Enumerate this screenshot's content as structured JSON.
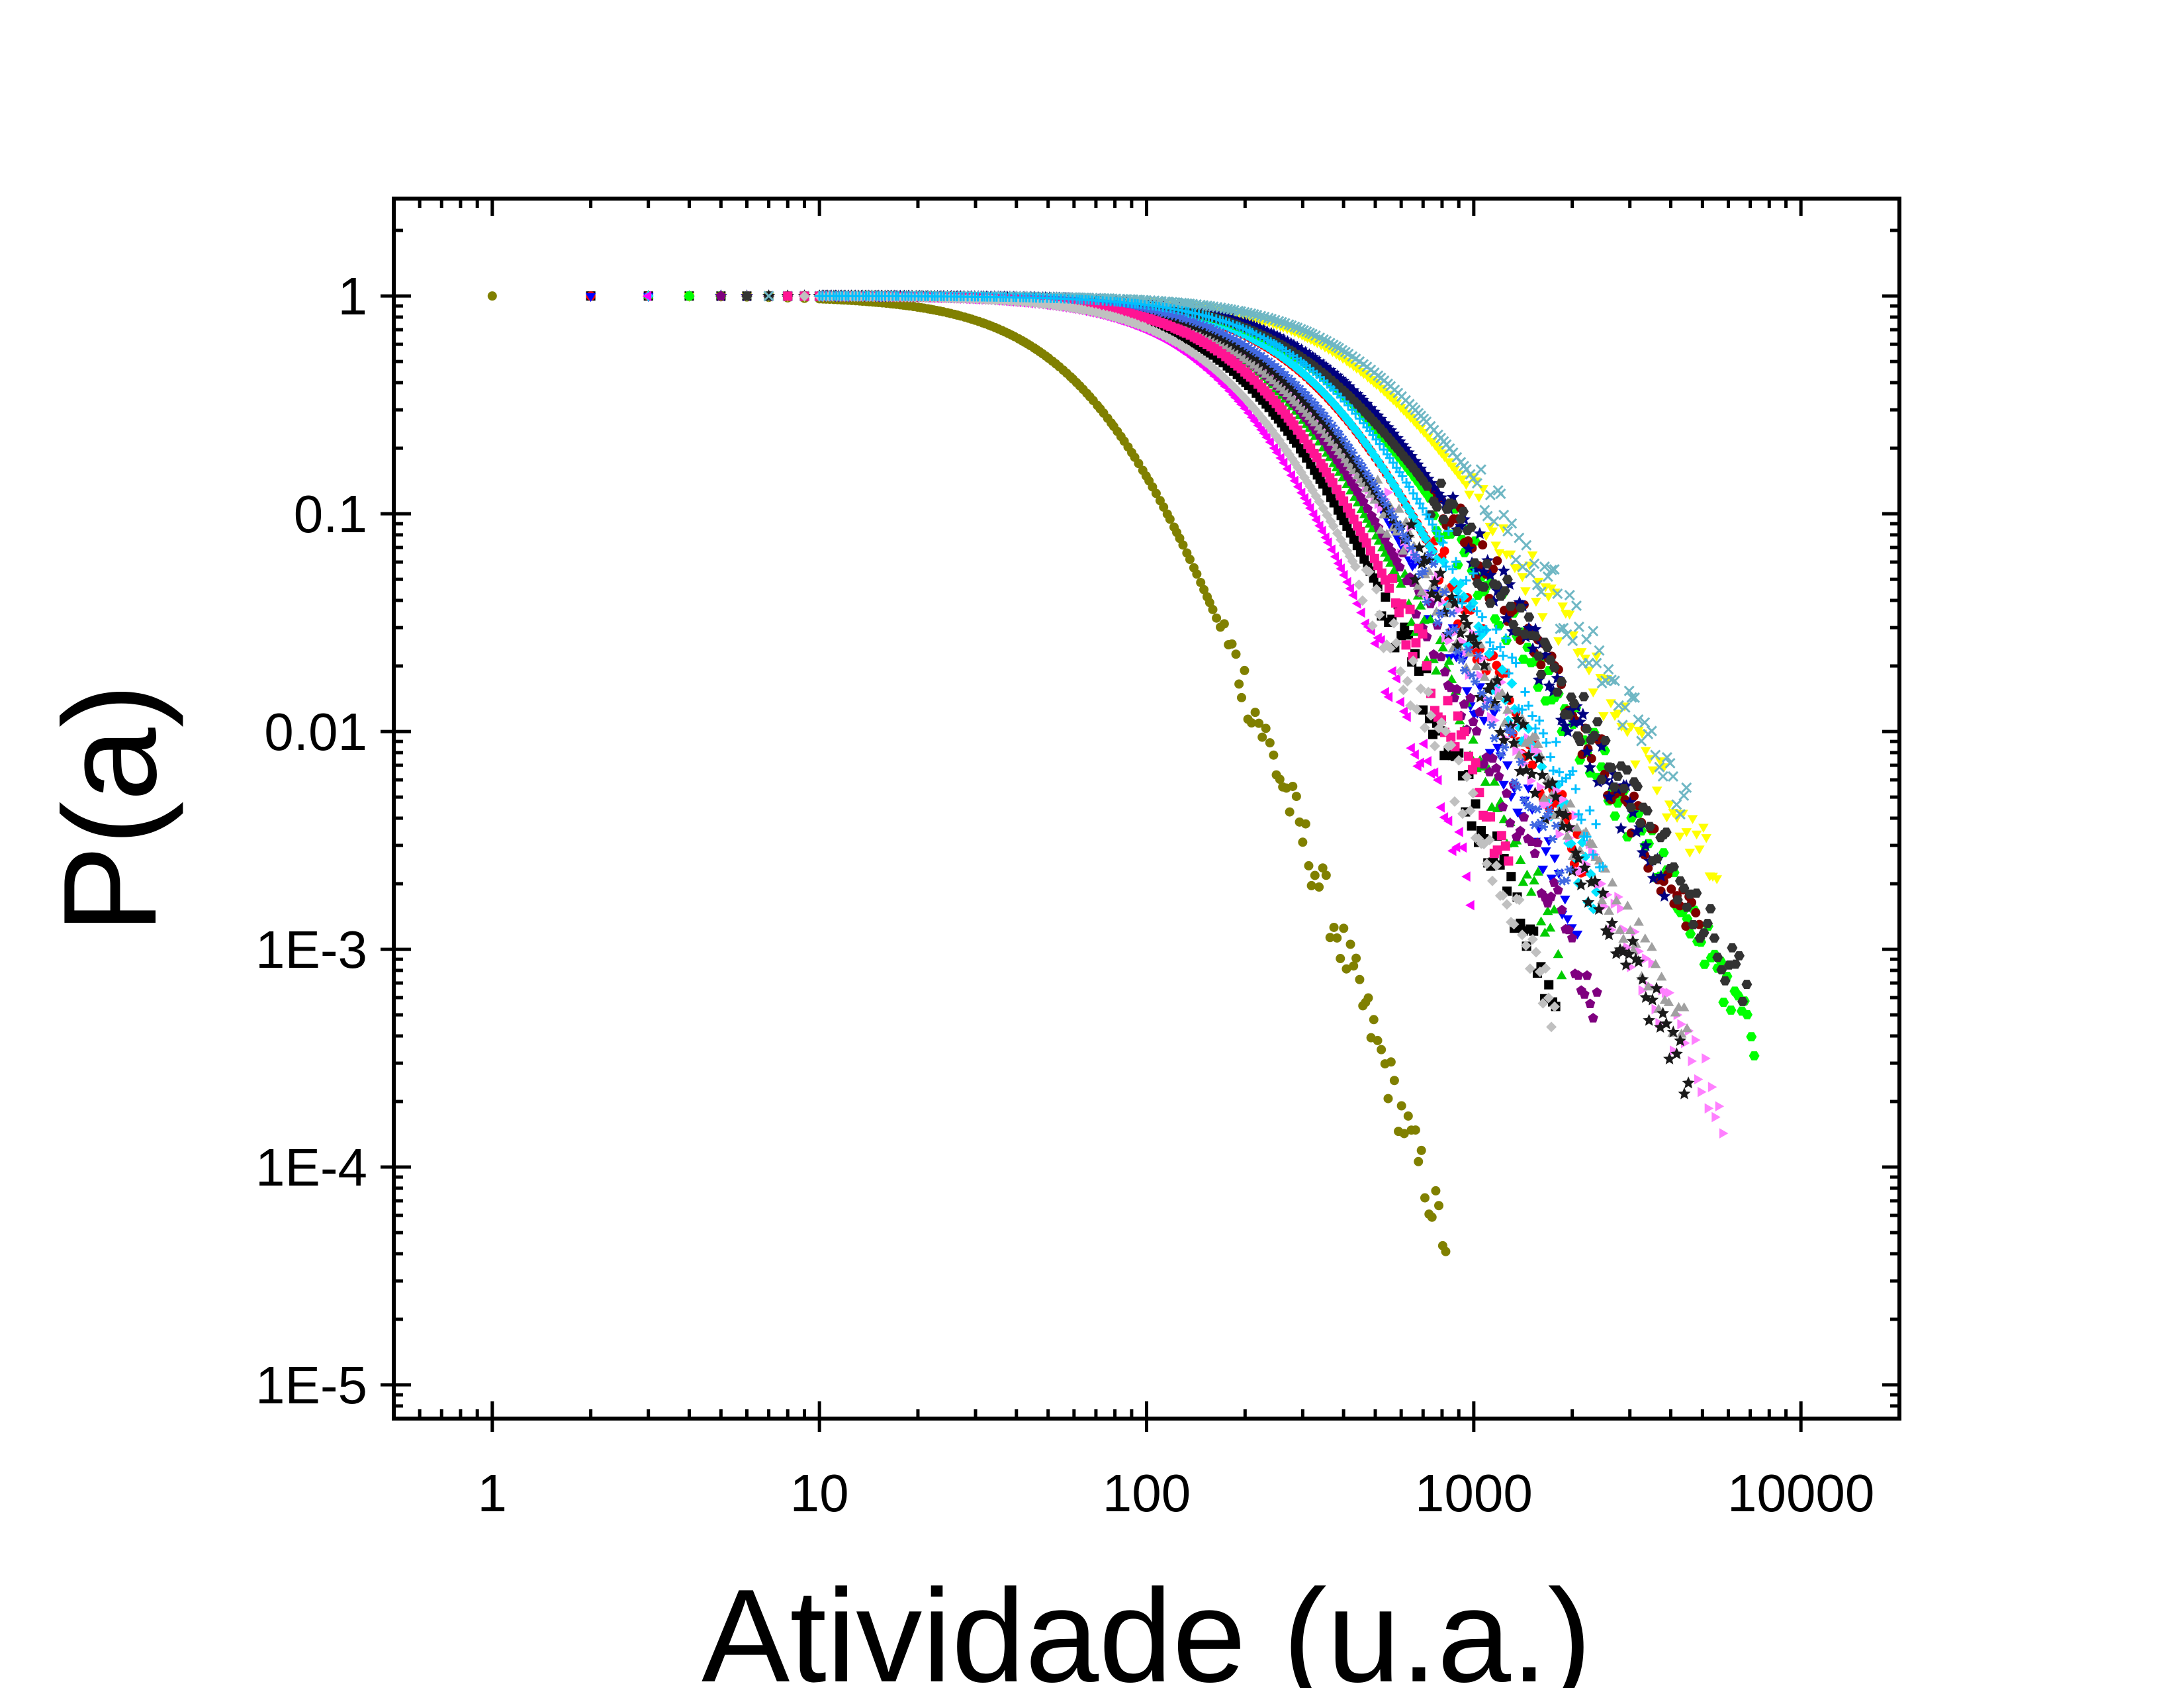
{
  "chart_data": {
    "type": "scatter",
    "title": "",
    "xlabel": "Atividade (u.a.)",
    "ylabel": "P(a)",
    "x_scale": "log",
    "y_scale": "log",
    "xlim": [
      0.5,
      20000
    ],
    "ylim": [
      7e-06,
      2.8
    ],
    "x_ticks": [
      {
        "value": 1,
        "label": "1"
      },
      {
        "value": 10,
        "label": "10"
      },
      {
        "value": 100,
        "label": "100"
      },
      {
        "value": 1000,
        "label": "1000"
      },
      {
        "value": 10000,
        "label": "10000"
      }
    ],
    "y_ticks": [
      {
        "value": 1,
        "label": "1"
      },
      {
        "value": 0.1,
        "label": "0.1"
      },
      {
        "value": 0.01,
        "label": "0.01"
      },
      {
        "value": 0.001,
        "label": "1E-3"
      },
      {
        "value": 0.0001,
        "label": "1E-4"
      },
      {
        "value": 1e-05,
        "label": "1E-5"
      }
    ],
    "grid": false,
    "legend": "none",
    "series": [
      {
        "color": "#808000",
        "marker": "circle",
        "knee": 85,
        "slope": 4.4,
        "xmin": 1,
        "xmax": 830,
        "pmin": 1.7e-05
      },
      {
        "color": "#000000",
        "marker": "square",
        "knee": 260,
        "slope": 3.9,
        "xmin": 2,
        "xmax": 1800,
        "pmin": 2.2e-05
      },
      {
        "color": "#ff0000",
        "marker": "circle",
        "knee": 380,
        "slope": 3.4,
        "xmin": 2,
        "xmax": 2200,
        "pmin": 2.1e-05
      },
      {
        "color": "#0000ff",
        "marker": "triangle-down",
        "knee": 330,
        "slope": 3.6,
        "xmin": 2,
        "xmax": 2100,
        "pmin": 2e-05
      },
      {
        "color": "#00cc00",
        "marker": "triangle-up",
        "knee": 300,
        "slope": 3.8,
        "xmin": 3,
        "xmax": 1900,
        "pmin": 2e-05
      },
      {
        "color": "#00e5ff",
        "marker": "diamond",
        "knee": 390,
        "slope": 3.5,
        "xmin": 3,
        "xmax": 2400,
        "pmin": 2.2e-05
      },
      {
        "color": "#ff00ff",
        "marker": "triangle-left",
        "knee": 230,
        "slope": 4.2,
        "xmin": 3,
        "xmax": 1000,
        "pmin": 9e-05
      },
      {
        "color": "#ff80ff",
        "marker": "triangle-right",
        "knee": 260,
        "slope": 2.8,
        "xmin": 4,
        "xmax": 5800,
        "pmin": 1.8e-05
      },
      {
        "color": "#ffff00",
        "marker": "triangle-down",
        "knee": 480,
        "slope": 2.5,
        "xmin": 4,
        "xmax": 5600,
        "pmin": 1.8e-05
      },
      {
        "color": "#00ff00",
        "marker": "hexagon",
        "knee": 360,
        "slope": 2.6,
        "xmin": 4,
        "xmax": 7200,
        "pmin": 2.2e-05
      },
      {
        "color": "#7f0000",
        "marker": "circle",
        "knee": 400,
        "slope": 2.7,
        "xmin": 5,
        "xmax": 4900,
        "pmin": 1.7e-05
      },
      {
        "color": "#000080",
        "marker": "star",
        "knee": 420,
        "slope": 2.8,
        "xmin": 5,
        "xmax": 3900,
        "pmin": 5e-05
      },
      {
        "color": "#7f007f",
        "marker": "pentagon",
        "knee": 300,
        "slope": 3.6,
        "xmin": 5,
        "xmax": 2400,
        "pmin": 2.3e-05
      },
      {
        "color": "#a0a0a0",
        "marker": "triangle-up",
        "knee": 250,
        "slope": 2.7,
        "xmin": 6,
        "xmax": 4500,
        "pmin": 4e-05
      },
      {
        "color": "#333333",
        "marker": "hexagon",
        "knee": 360,
        "slope": 2.5,
        "xmin": 6,
        "xmax": 7000,
        "pmin": 5.5e-05
      },
      {
        "color": "#1a1a1a",
        "marker": "star",
        "knee": 290,
        "slope": 3.0,
        "xmin": 7,
        "xmax": 4600,
        "pmin": 4e-05
      },
      {
        "color": "#6fb7c4",
        "marker": "cross",
        "knee": 520,
        "slope": 2.5,
        "xmin": 7,
        "xmax": 4500,
        "pmin": 1.8e-05
      },
      {
        "color": "#4169e1",
        "marker": "asterisk",
        "knee": 340,
        "slope": 3.5,
        "xmin": 8,
        "xmax": 2000,
        "pmin": 2e-05
      },
      {
        "color": "#ff1493",
        "marker": "square",
        "knee": 280,
        "slope": 3.9,
        "xmin": 8,
        "xmax": 1300,
        "pmin": 6e-05
      },
      {
        "color": "#c0c0c0",
        "marker": "diamond",
        "knee": 220,
        "slope": 3.6,
        "xmin": 9,
        "xmax": 1800,
        "pmin": 4.5e-05
      },
      {
        "color": "#00bfff",
        "marker": "plus",
        "knee": 410,
        "slope": 3.3,
        "xmin": 10,
        "xmax": 2500,
        "pmin": 3e-05
      }
    ]
  }
}
